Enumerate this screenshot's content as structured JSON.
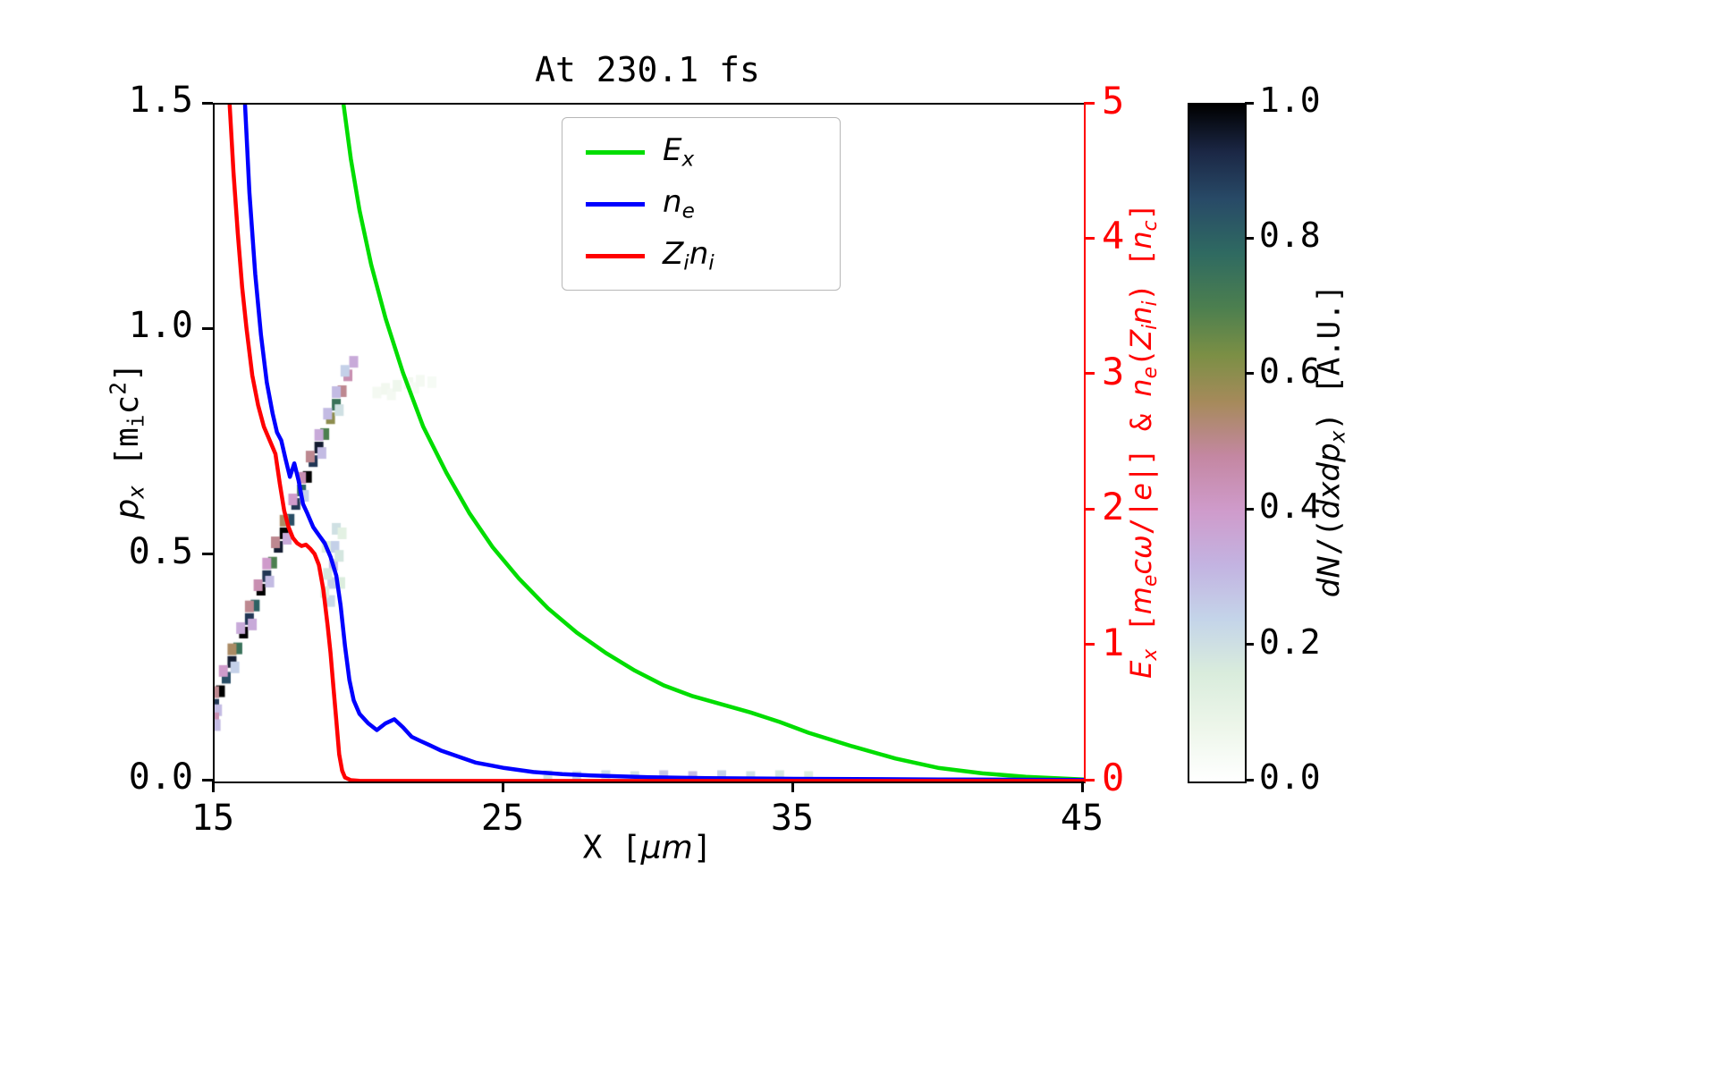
{
  "chart_data": {
    "type": "line",
    "title": "At 230.1 fs",
    "x_axis": {
      "min": 15,
      "max": 45,
      "ticks": [
        "15",
        "25",
        "35",
        "45"
      ],
      "label_parts": [
        {
          "t": "X ["
        },
        {
          "t": "μm",
          "i": 1
        },
        {
          "t": "]"
        }
      ]
    },
    "y_left": {
      "min": 0,
      "max": 1.5,
      "ticks": [
        "0.0",
        "0.5",
        "1.0",
        "1.5"
      ],
      "label_parts": [
        {
          "t": "p",
          "i": 1
        },
        {
          "t": "x",
          "i": 1,
          "sub": 1
        },
        {
          "t": " ["
        },
        {
          "t": "m"
        },
        {
          "t": "i",
          "sub": 1
        },
        {
          "t": "c"
        },
        {
          "t": "2",
          "sup": 1
        },
        {
          "t": "]"
        }
      ]
    },
    "y_right": {
      "min": 0,
      "max": 5,
      "ticks": [
        "0",
        "1",
        "2",
        "3",
        "4",
        "5"
      ],
      "color": "#ff0000",
      "label_parts": [
        {
          "t": "E",
          "i": 1
        },
        {
          "t": "x",
          "i": 1,
          "sub": 1
        },
        {
          "t": " ["
        },
        {
          "t": "m",
          "i": 1
        },
        {
          "t": "e",
          "i": 1,
          "sub": 1
        },
        {
          "t": "c",
          "i": 1
        },
        {
          "t": "ω",
          "i": 1
        },
        {
          "t": "/|"
        },
        {
          "t": "e",
          "i": 1
        },
        {
          "t": "|] & "
        },
        {
          "t": "n",
          "i": 1
        },
        {
          "t": "e",
          "i": 1,
          "sub": 1
        },
        {
          "t": "("
        },
        {
          "t": "Z",
          "i": 1
        },
        {
          "t": "i",
          "i": 1,
          "sub": 1
        },
        {
          "t": "n",
          "i": 1
        },
        {
          "t": "i",
          "i": 1,
          "sub": 1
        },
        {
          "t": ") ["
        },
        {
          "t": "n",
          "i": 1
        },
        {
          "t": "c",
          "i": 1,
          "sub": 1
        },
        {
          "t": "]"
        }
      ]
    },
    "legend": [
      {
        "name": "Ex",
        "color": "#00dd00",
        "parts": [
          {
            "t": "E",
            "i": 1
          },
          {
            "t": "x",
            "i": 1,
            "sub": 1
          }
        ]
      },
      {
        "name": "ne",
        "color": "#0000ff",
        "parts": [
          {
            "t": "n",
            "i": 1
          },
          {
            "t": "e",
            "i": 1,
            "sub": 1
          }
        ]
      },
      {
        "name": "Zini",
        "color": "#ff0000",
        "parts": [
          {
            "t": "Z",
            "i": 1
          },
          {
            "t": "i",
            "i": 1,
            "sub": 1
          },
          {
            "t": "n",
            "i": 1
          },
          {
            "t": "i",
            "i": 1,
            "sub": 1
          }
        ]
      }
    ],
    "series": [
      {
        "name": "Ex",
        "axis": "right",
        "color": "#00dd00",
        "x": [
          19.45,
          19.7,
          20.0,
          20.4,
          20.9,
          21.5,
          22.2,
          23.0,
          23.8,
          24.6,
          25.5,
          26.5,
          27.5,
          28.5,
          29.5,
          30.5,
          31.5,
          32.5,
          33.5,
          34.5,
          35.5,
          37.0,
          38.5,
          40.0,
          41.5,
          43.0,
          44.5,
          45.0
        ],
        "y": [
          5.0,
          4.6,
          4.22,
          3.82,
          3.42,
          3.02,
          2.62,
          2.28,
          1.98,
          1.73,
          1.5,
          1.28,
          1.1,
          0.95,
          0.82,
          0.71,
          0.63,
          0.57,
          0.51,
          0.44,
          0.36,
          0.26,
          0.17,
          0.1,
          0.06,
          0.035,
          0.02,
          0.015
        ]
      },
      {
        "name": "ne",
        "axis": "right",
        "color": "#0000ff",
        "x": [
          16.05,
          16.2,
          16.4,
          16.6,
          16.8,
          17.0,
          17.15,
          17.3,
          17.45,
          17.6,
          17.75,
          17.9,
          18.05,
          18.2,
          18.4,
          18.6,
          18.8,
          19.0,
          19.2,
          19.35,
          19.5,
          19.65,
          19.8,
          20.0,
          20.3,
          20.6,
          20.9,
          21.2,
          21.5,
          21.8,
          22.1,
          22.4,
          22.8,
          23.2,
          23.6,
          24.0,
          24.5,
          25.0,
          25.5,
          26.0,
          27.0,
          28.0,
          29.0,
          30.0,
          32.0,
          35.0,
          40.0,
          45.0
        ],
        "y": [
          5.0,
          4.35,
          3.75,
          3.3,
          2.95,
          2.72,
          2.58,
          2.52,
          2.38,
          2.25,
          2.35,
          2.22,
          2.05,
          1.98,
          1.88,
          1.82,
          1.76,
          1.66,
          1.52,
          1.3,
          1.0,
          0.75,
          0.6,
          0.5,
          0.43,
          0.38,
          0.43,
          0.46,
          0.4,
          0.33,
          0.3,
          0.27,
          0.23,
          0.2,
          0.17,
          0.14,
          0.12,
          0.1,
          0.085,
          0.07,
          0.055,
          0.045,
          0.038,
          0.032,
          0.025,
          0.02,
          0.015,
          0.012
        ]
      },
      {
        "name": "Zini",
        "axis": "right",
        "color": "#ff0000",
        "x": [
          15.52,
          15.65,
          15.8,
          15.95,
          16.1,
          16.3,
          16.5,
          16.7,
          16.9,
          17.1,
          17.25,
          17.4,
          17.55,
          17.7,
          17.85,
          18.0,
          18.15,
          18.3,
          18.45,
          18.6,
          18.75,
          18.9,
          19.0,
          19.1,
          19.2,
          19.3,
          19.4,
          19.5,
          19.7,
          20.0,
          21.0,
          23.0,
          26.0,
          30.0,
          35.0,
          40.0,
          45.0
        ],
        "y": [
          5.0,
          4.5,
          4.05,
          3.65,
          3.35,
          3.0,
          2.78,
          2.62,
          2.52,
          2.42,
          2.2,
          2.0,
          1.88,
          1.8,
          1.76,
          1.74,
          1.75,
          1.72,
          1.68,
          1.6,
          1.42,
          1.15,
          0.95,
          0.7,
          0.45,
          0.2,
          0.08,
          0.03,
          0.01,
          0.005,
          0.004,
          0.004,
          0.004,
          0.004,
          0.004,
          0.004,
          0.004
        ]
      }
    ],
    "phase_space_heatmap": {
      "type": "heatmap",
      "axis": "left",
      "x_bin": 0.2,
      "p_bin": 0.026,
      "cells": [
        [
          15.0,
          0.17,
          0.9
        ],
        [
          15.2,
          0.2,
          1.0
        ],
        [
          15.4,
          0.23,
          0.85
        ],
        [
          15.6,
          0.265,
          0.95
        ],
        [
          15.8,
          0.295,
          0.75
        ],
        [
          16.0,
          0.33,
          1.0
        ],
        [
          16.2,
          0.36,
          0.9
        ],
        [
          16.4,
          0.39,
          0.8
        ],
        [
          16.6,
          0.425,
          1.0
        ],
        [
          16.8,
          0.455,
          0.9
        ],
        [
          17.0,
          0.485,
          0.7
        ],
        [
          17.2,
          0.52,
          0.95
        ],
        [
          17.4,
          0.55,
          1.0
        ],
        [
          17.6,
          0.58,
          0.85
        ],
        [
          17.8,
          0.615,
          0.9
        ],
        [
          18.0,
          0.645,
          0.8
        ],
        [
          18.2,
          0.675,
          1.0
        ],
        [
          18.4,
          0.71,
          0.9
        ],
        [
          18.6,
          0.74,
          0.95
        ],
        [
          18.8,
          0.77,
          0.7
        ],
        [
          19.0,
          0.805,
          0.6
        ],
        [
          19.2,
          0.835,
          0.75
        ],
        [
          19.4,
          0.865,
          0.5
        ],
        [
          19.6,
          0.9,
          0.45
        ],
        [
          19.8,
          0.93,
          0.35
        ],
        [
          15.0,
          0.198,
          0.5
        ],
        [
          15.3,
          0.245,
          0.4
        ],
        [
          15.6,
          0.293,
          0.55
        ],
        [
          15.9,
          0.34,
          0.35
        ],
        [
          16.2,
          0.388,
          0.5
        ],
        [
          16.5,
          0.435,
          0.45
        ],
        [
          16.8,
          0.483,
          0.4
        ],
        [
          17.1,
          0.53,
          0.5
        ],
        [
          17.4,
          0.578,
          0.55
        ],
        [
          17.7,
          0.625,
          0.4
        ],
        [
          18.0,
          0.673,
          0.45
        ],
        [
          18.3,
          0.72,
          0.5
        ],
        [
          18.6,
          0.768,
          0.35
        ],
        [
          18.9,
          0.815,
          0.3
        ],
        [
          19.2,
          0.863,
          0.3
        ],
        [
          19.5,
          0.91,
          0.25
        ],
        [
          15.1,
          0.158,
          0.3
        ],
        [
          15.7,
          0.253,
          0.25
        ],
        [
          16.3,
          0.348,
          0.35
        ],
        [
          16.9,
          0.443,
          0.3
        ],
        [
          17.5,
          0.538,
          0.35
        ],
        [
          18.1,
          0.633,
          0.25
        ],
        [
          18.7,
          0.728,
          0.3
        ],
        [
          19.3,
          0.823,
          0.2
        ],
        [
          15.0,
          0.14,
          0.45
        ],
        [
          15.05,
          0.125,
          0.3
        ],
        [
          19.0,
          0.4,
          0.22
        ],
        [
          19.05,
          0.44,
          0.25
        ],
        [
          19.1,
          0.48,
          0.3
        ],
        [
          19.15,
          0.52,
          0.25
        ],
        [
          19.2,
          0.56,
          0.2
        ],
        [
          19.3,
          0.5,
          0.18
        ],
        [
          19.35,
          0.44,
          0.15
        ],
        [
          19.4,
          0.55,
          0.12
        ],
        [
          18.9,
          0.46,
          0.18
        ],
        [
          18.85,
          0.52,
          0.15
        ],
        [
          18.8,
          0.42,
          0.14
        ],
        [
          20.6,
          0.862,
          0.05
        ],
        [
          20.9,
          0.87,
          0.06
        ],
        [
          21.1,
          0.858,
          0.05
        ],
        [
          21.3,
          0.877,
          0.07
        ],
        [
          21.7,
          0.883,
          0.06
        ],
        [
          21.9,
          0.872,
          0.04
        ],
        [
          22.1,
          0.888,
          0.05
        ],
        [
          22.5,
          0.885,
          0.04
        ],
        [
          26.5,
          0.012,
          0.2
        ],
        [
          27.5,
          0.01,
          0.25
        ],
        [
          28.5,
          0.012,
          0.22
        ],
        [
          29.5,
          0.01,
          0.2
        ],
        [
          30.5,
          0.012,
          0.28
        ],
        [
          31.5,
          0.01,
          0.3
        ],
        [
          32.5,
          0.012,
          0.25
        ],
        [
          33.5,
          0.01,
          0.2
        ],
        [
          34.5,
          0.012,
          0.18
        ],
        [
          35.5,
          0.01,
          0.15
        ]
      ]
    },
    "colorbar": {
      "min": 0,
      "max": 1,
      "ticks": [
        "0.0",
        "0.2",
        "0.4",
        "0.6",
        "0.8",
        "1.0"
      ],
      "label_parts": [
        {
          "t": "dN",
          "i": 1
        },
        {
          "t": "/("
        },
        {
          "t": "dxdp",
          "i": 1
        },
        {
          "t": "x",
          "i": 1,
          "sub": 1
        },
        {
          "t": ") ["
        },
        {
          "t": "A.U."
        },
        {
          "t": "]"
        }
      ],
      "stops": [
        [
          0.0,
          "#ffffff"
        ],
        [
          0.08,
          "#edf6ea"
        ],
        [
          0.16,
          "#d9ecdc"
        ],
        [
          0.24,
          "#c4d4e9"
        ],
        [
          0.32,
          "#c3b3e1"
        ],
        [
          0.4,
          "#cf9bcb"
        ],
        [
          0.48,
          "#c487a2"
        ],
        [
          0.56,
          "#a68a5b"
        ],
        [
          0.63,
          "#7b8f45"
        ],
        [
          0.7,
          "#4c7f4f"
        ],
        [
          0.78,
          "#2f6a61"
        ],
        [
          0.86,
          "#284a67"
        ],
        [
          0.93,
          "#1b2745"
        ],
        [
          1.0,
          "#000000"
        ]
      ]
    },
    "layout": {
      "grid": false,
      "legend_position": "upper center",
      "background": "#ffffff",
      "right_spine_color": "#ff0000"
    }
  }
}
